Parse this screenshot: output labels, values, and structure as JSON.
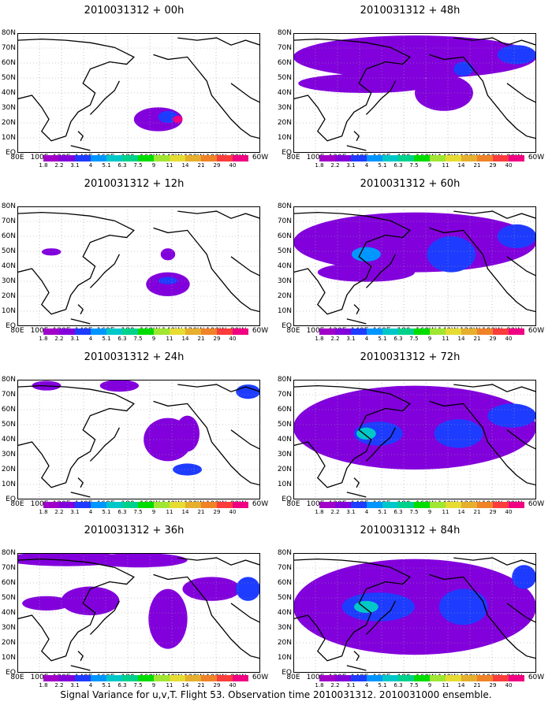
{
  "caption": "Signal Variance for u,v,T. Flight 53. Observation time 2010031312. 2010031000 ensemble.",
  "panels": [
    {
      "title": "2010031312 + 00h",
      "coverage": "minimal"
    },
    {
      "title": "2010031312 + 12h",
      "coverage": "small"
    },
    {
      "title": "2010031312 + 24h",
      "coverage": "light"
    },
    {
      "title": "2010031312 + 36h",
      "coverage": "moderate"
    },
    {
      "title": "2010031312 + 48h",
      "coverage": "wide"
    },
    {
      "title": "2010031312 + 60h",
      "coverage": "wide"
    },
    {
      "title": "2010031312 + 72h",
      "coverage": "dense"
    },
    {
      "title": "2010031312 + 84h",
      "coverage": "dense"
    }
  ],
  "lat_labels": [
    "80N",
    "70N",
    "60N",
    "50N",
    "40N",
    "30N",
    "20N",
    "10N",
    "EQ"
  ],
  "lon_labels": [
    "80E",
    "100E",
    "120E",
    "140E",
    "160E",
    "180",
    "160W",
    "140W",
    "120W",
    "100W",
    "80W",
    "60W"
  ],
  "colorbar": {
    "labels": [
      "1.8",
      "2.2",
      "3.1",
      "4",
      "5.1",
      "6.3",
      "7.5",
      "9",
      "11",
      "14",
      "21",
      "29",
      "40"
    ],
    "colors": [
      "#a000c8",
      "#8200dc",
      "#1e3cff",
      "#0096ff",
      "#00c8c8",
      "#00d28c",
      "#00dc00",
      "#a0e632",
      "#e6dc32",
      "#e6af2d",
      "#f08228",
      "#fa3c3c",
      "#f00082"
    ]
  }
}
